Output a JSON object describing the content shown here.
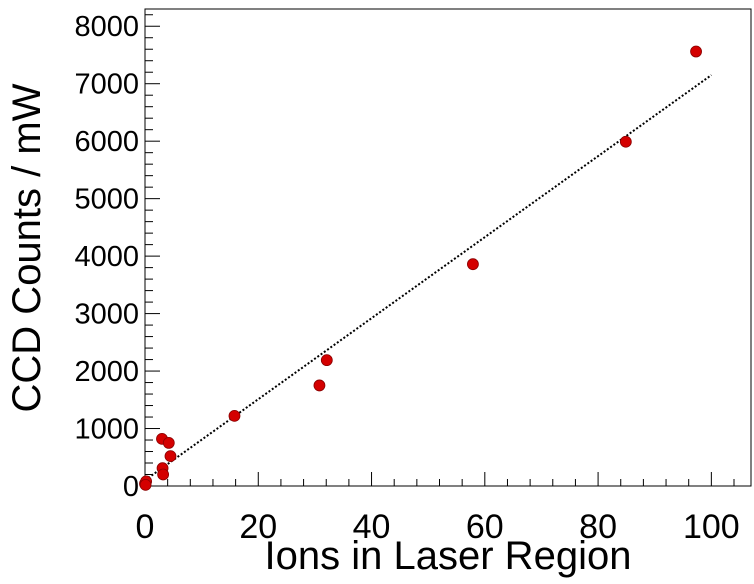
{
  "chart_data": {
    "type": "scatter",
    "title": "",
    "xlabel": "Ions in Laser Region",
    "ylabel": "CCD Counts / mW",
    "xlim": [
      0,
      107
    ],
    "ylim": [
      0,
      8300
    ],
    "x_ticks": [
      0,
      20,
      40,
      60,
      80,
      100
    ],
    "y_ticks": [
      0,
      1000,
      2000,
      3000,
      4000,
      5000,
      6000,
      7000,
      8000
    ],
    "x_tick_labels": [
      "0",
      "20",
      "40",
      "60",
      "80",
      "100"
    ],
    "y_tick_labels": [
      "0",
      "1000",
      "2000",
      "3000",
      "4000",
      "5000",
      "6000",
      "7000",
      "8000"
    ],
    "grid": false,
    "legend": "none",
    "series": [
      {
        "type": "scatter",
        "color": "#d40000",
        "points": [
          {
            "x": 0.0,
            "y": 40
          },
          {
            "x": 0.2,
            "y": 80
          },
          {
            "x": 0.1,
            "y": 20
          },
          {
            "x": 3.0,
            "y": 820
          },
          {
            "x": 4.2,
            "y": 750
          },
          {
            "x": 4.5,
            "y": 520
          },
          {
            "x": 3.1,
            "y": 310
          },
          {
            "x": 3.2,
            "y": 200
          },
          {
            "x": 15.8,
            "y": 1220
          },
          {
            "x": 30.8,
            "y": 1750
          },
          {
            "x": 32.1,
            "y": 2190
          },
          {
            "x": 57.9,
            "y": 3860
          },
          {
            "x": 84.9,
            "y": 5990
          },
          {
            "x": 97.3,
            "y": 7560
          }
        ]
      },
      {
        "type": "line",
        "style": "dotted",
        "color": "#000000",
        "points": [
          {
            "x": 0,
            "y": 100
          },
          {
            "x": 100,
            "y": 7150
          }
        ]
      }
    ]
  }
}
